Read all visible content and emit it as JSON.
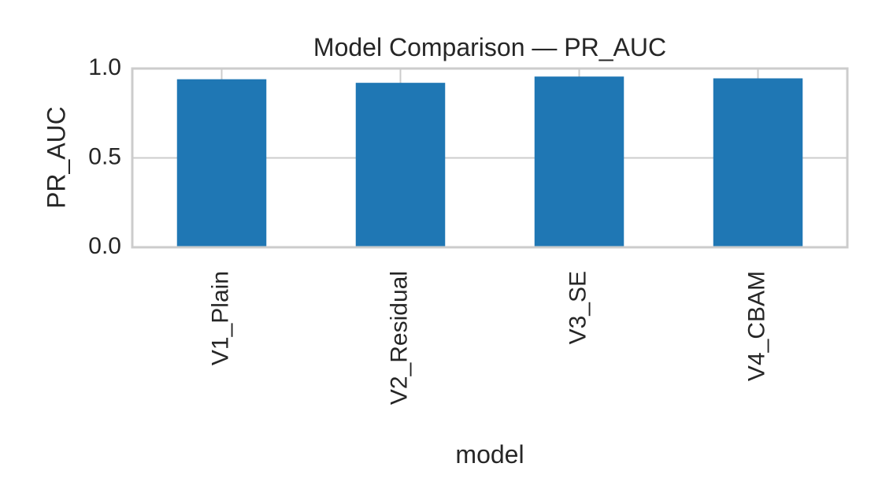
{
  "chart_data": {
    "type": "bar",
    "title": "Model Comparison — PR_AUC",
    "xlabel": "model",
    "ylabel": "PR_AUC",
    "categories": [
      "V1_Plain",
      "V2_Residual",
      "V3_SE",
      "V4_CBAM"
    ],
    "values": [
      0.94,
      0.92,
      0.955,
      0.945
    ],
    "ylim": [
      0,
      1.0
    ],
    "yticks": [
      "0.0",
      "0.5",
      "1.0"
    ],
    "ytick_values": [
      0,
      0.5,
      1.0
    ],
    "grid": true,
    "legend": "none",
    "bar_color": "#1f77b4",
    "grid_color": "#cccccc",
    "axes_edge_color": "#cccccc"
  }
}
